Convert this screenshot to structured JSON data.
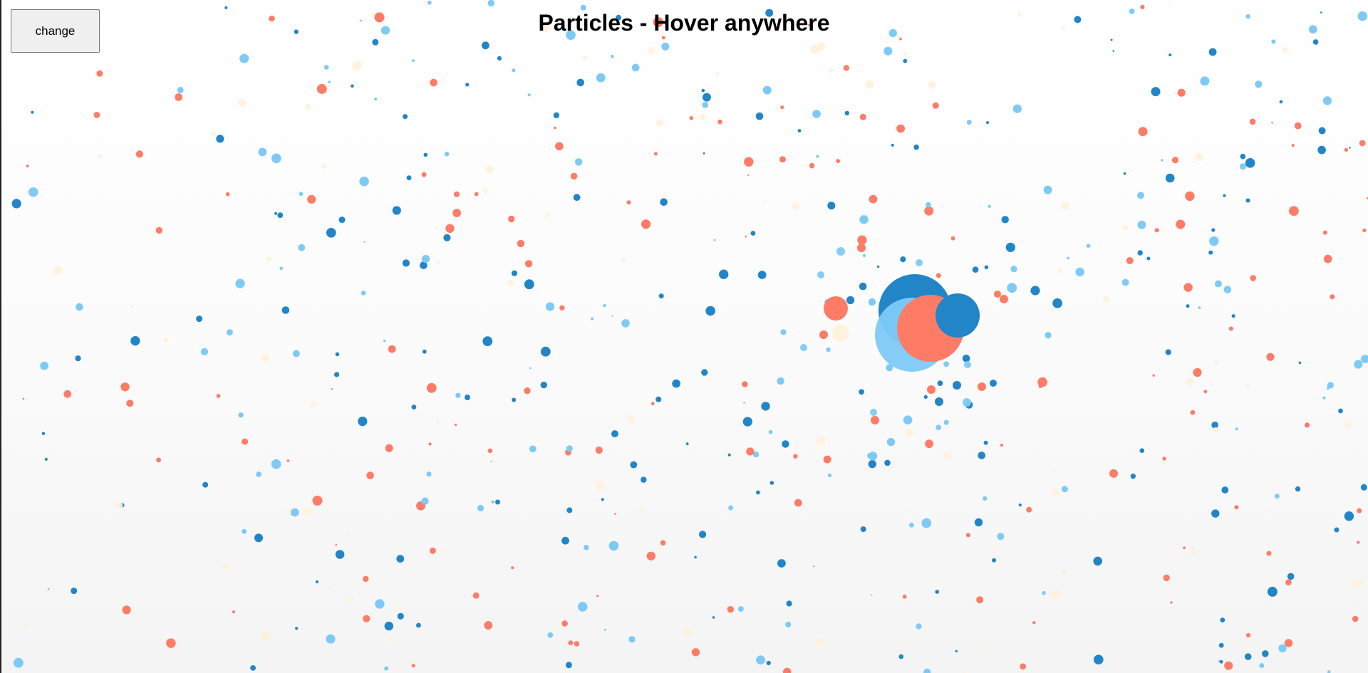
{
  "title": "Particles - Hover anywhere",
  "change_button": {
    "label": "change"
  },
  "palette": {
    "dark_blue": "#2185c8",
    "light_blue": "#7ecaf7",
    "coral": "#fe7c66",
    "cream": "#fff2dc"
  }
}
